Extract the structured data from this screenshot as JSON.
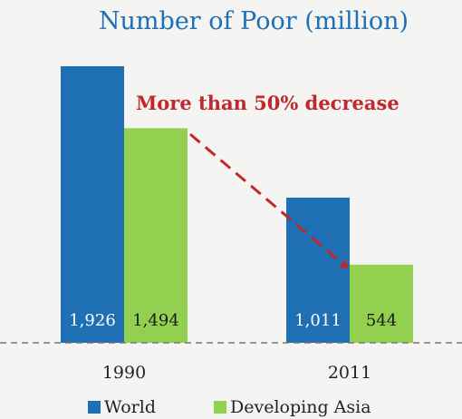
{
  "chart_data": {
    "type": "bar",
    "title": "Number of Poor (million)",
    "categories": [
      "1990",
      "2011"
    ],
    "series": [
      {
        "name": "World",
        "color": "#1f6fb5",
        "values": [
          1926,
          1011
        ],
        "labels": [
          "1,926",
          "1,011"
        ]
      },
      {
        "name": "Developing Asia",
        "color": "#92d050",
        "values": [
          1494,
          544
        ],
        "labels": [
          "1,494",
          "544"
        ]
      }
    ],
    "annotation": {
      "text": "More than 50% decrease",
      "color": "#c0282e"
    },
    "legend_position": "bottom",
    "grid": false
  }
}
